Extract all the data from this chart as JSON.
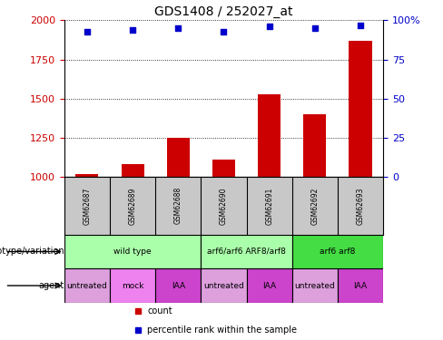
{
  "title": "GDS1408 / 252027_at",
  "samples": [
    "GSM62687",
    "GSM62689",
    "GSM62688",
    "GSM62690",
    "GSM62691",
    "GSM62692",
    "GSM62693"
  ],
  "count_values": [
    1020,
    1080,
    1250,
    1110,
    1530,
    1400,
    1870
  ],
  "percentile_values": [
    93,
    94,
    95,
    93,
    96,
    95,
    97
  ],
  "bar_color": "#CC0000",
  "dot_color": "#0000CC",
  "ylim_left": [
    1000,
    2000
  ],
  "ylim_right": [
    0,
    100
  ],
  "yticks_left": [
    1000,
    1250,
    1500,
    1750,
    2000
  ],
  "yticks_right": [
    0,
    25,
    50,
    75,
    100
  ],
  "ytick_labels_right": [
    "0",
    "25",
    "50",
    "75",
    "100%"
  ],
  "genotype_groups": [
    {
      "label": "wild type",
      "start": 0,
      "end": 2,
      "color": "#AAFFAA"
    },
    {
      "label": "arf6/arf6 ARF8/arf8",
      "start": 3,
      "end": 4,
      "color": "#AAFFAA"
    },
    {
      "label": "arf6 arf8",
      "start": 5,
      "end": 6,
      "color": "#44DD44"
    }
  ],
  "agent_groups": [
    {
      "label": "untreated",
      "start": 0,
      "end": 0,
      "color": "#DDA0DD"
    },
    {
      "label": "mock",
      "start": 1,
      "end": 1,
      "color": "#EE82EE"
    },
    {
      "label": "IAA",
      "start": 2,
      "end": 2,
      "color": "#CC44CC"
    },
    {
      "label": "untreated",
      "start": 3,
      "end": 3,
      "color": "#DDA0DD"
    },
    {
      "label": "IAA",
      "start": 4,
      "end": 4,
      "color": "#CC44CC"
    },
    {
      "label": "untreated",
      "start": 5,
      "end": 5,
      "color": "#DDA0DD"
    },
    {
      "label": "IAA",
      "start": 6,
      "end": 6,
      "color": "#CC44CC"
    }
  ],
  "sample_bg_color": "#C8C8C8",
  "legend_count_color": "#CC0000",
  "legend_dot_color": "#0000CC",
  "axis_label_color_left": "#CC0000",
  "axis_label_color_right": "#0000CC",
  "background_color": "#FFFFFF",
  "genotype_label": "genotype/variation",
  "agent_label": "agent"
}
